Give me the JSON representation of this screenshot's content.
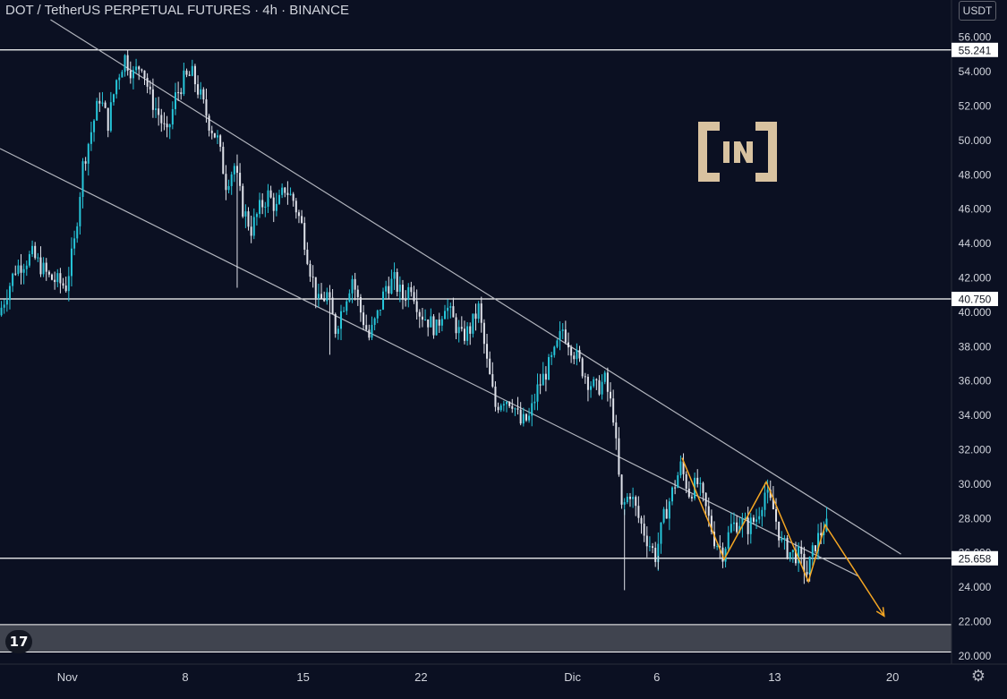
{
  "header": {
    "title": "DOT / TetherUS PERPETUAL FUTURES · 4h · BINANCE",
    "currency": "USDT",
    "tv_logo": "17"
  },
  "icons": {
    "settings": "gear-icon",
    "tradingview": "tradingview-logo-icon",
    "watermark": "beincrypto-logo-icon"
  },
  "colors": {
    "background": "#0b1022",
    "candle_up": "#26c6da",
    "candle_down": "#e0e3eb",
    "channel": "#b2b5be",
    "level": "#ffffff",
    "projection": "#f5a623",
    "zone": "#4a4d57",
    "axis_text": "#d1d4dc",
    "logo": "#d8c2a0"
  },
  "chart_data": {
    "type": "candlestick",
    "title": "DOT / TetherUS PERPETUAL FUTURES · 4h · BINANCE",
    "currency": "USDT",
    "ylim": [
      19.5,
      57
    ],
    "y_ticks": [
      "56.000",
      "54.000",
      "52.000",
      "50.000",
      "48.000",
      "46.000",
      "44.000",
      "42.000",
      "40.000",
      "38.000",
      "36.000",
      "34.000",
      "32.000",
      "30.000",
      "28.000",
      "26.000",
      "24.000",
      "22.000",
      "20.000"
    ],
    "x_range": [
      "2021-10-28T00:00",
      "2021-12-23T12:00"
    ],
    "x_ticks": [
      {
        "label": "Nov",
        "date": "2021-11-01"
      },
      {
        "label": "8",
        "date": "2021-11-08"
      },
      {
        "label": "15",
        "date": "2021-11-15"
      },
      {
        "label": "22",
        "date": "2021-11-22"
      },
      {
        "label": "Dic",
        "date": "2021-12-01"
      },
      {
        "label": "6",
        "date": "2021-12-06"
      },
      {
        "label": "13",
        "date": "2021-12-13"
      },
      {
        "label": "20",
        "date": "2021-12-20"
      }
    ],
    "price_levels": [
      {
        "value": 55.241,
        "label": "55.241"
      },
      {
        "value": 40.75,
        "label": "40.750"
      },
      {
        "value": 25.658,
        "label": "25.658"
      }
    ],
    "support_zone": [
      20.2,
      21.8
    ],
    "channel_lines": [
      {
        "from": [
          "2021-10-31T00:00",
          57.0
        ],
        "to": [
          "2021-12-20T12:00",
          25.9
        ]
      },
      {
        "from": [
          "2021-10-28T00:00",
          49.5
        ],
        "to": [
          "2021-12-18T00:00",
          24.6
        ]
      }
    ],
    "projection_path": [
      [
        "2021-12-07T12:00",
        31.5
      ],
      [
        "2021-12-10T00:00",
        25.6
      ],
      [
        "2021-12-12T12:00",
        30.1
      ],
      [
        "2021-12-15T00:00",
        24.3
      ],
      [
        "2021-12-16T00:00",
        27.6
      ],
      [
        "2021-12-19T12:00",
        22.3
      ]
    ],
    "price_path": [
      [
        "2021-10-28T00:00",
        39.8
      ],
      [
        "2021-10-29T00:00",
        42.5
      ],
      [
        "2021-10-30T00:00",
        43.3
      ],
      [
        "2021-10-31T00:00",
        42.0
      ],
      [
        "2021-11-01T00:00",
        41.5
      ],
      [
        "2021-11-01T12:00",
        44.0
      ],
      [
        "2021-11-02T00:00",
        48.5
      ],
      [
        "2021-11-02T12:00",
        50.5
      ],
      [
        "2021-11-03T00:00",
        52.5
      ],
      [
        "2021-11-03T12:00",
        51.0
      ],
      [
        "2021-11-04T00:00",
        53.5
      ],
      [
        "2021-11-04T12:00",
        54.8
      ],
      [
        "2021-11-05T00:00",
        53.8
      ],
      [
        "2021-11-05T12:00",
        54.5
      ],
      [
        "2021-11-06T00:00",
        52.5
      ],
      [
        "2021-11-06T12:00",
        51.5
      ],
      [
        "2021-11-07T00:00",
        50.2
      ],
      [
        "2021-11-07T12:00",
        52.5
      ],
      [
        "2021-11-08T00:00",
        53.5
      ],
      [
        "2021-11-08T12:00",
        53.8
      ],
      [
        "2021-11-09T00:00",
        52.5
      ],
      [
        "2021-11-09T12:00",
        51.0
      ],
      [
        "2021-11-10T00:00",
        50.0
      ],
      [
        "2021-11-10T12:00",
        47.5
      ],
      [
        "2021-11-11T00:00",
        48.5
      ],
      [
        "2021-11-11T12:00",
        46.0
      ],
      [
        "2021-11-12T00:00",
        44.8
      ],
      [
        "2021-11-12T12:00",
        46.0
      ],
      [
        "2021-11-13T00:00",
        46.8
      ],
      [
        "2021-11-13T12:00",
        46.0
      ],
      [
        "2021-11-14T00:00",
        47.2
      ],
      [
        "2021-11-14T12:00",
        46.5
      ],
      [
        "2021-11-15T00:00",
        45.0
      ],
      [
        "2021-11-15T12:00",
        42.5
      ],
      [
        "2021-11-16T00:00",
        40.5
      ],
      [
        "2021-11-16T12:00",
        41.0
      ],
      [
        "2021-11-17T00:00",
        39.0
      ],
      [
        "2021-11-17T12:00",
        40.5
      ],
      [
        "2021-11-18T00:00",
        42.0
      ],
      [
        "2021-11-18T12:00",
        40.0
      ],
      [
        "2021-11-19T00:00",
        38.5
      ],
      [
        "2021-11-19T12:00",
        39.8
      ],
      [
        "2021-11-20T00:00",
        41.5
      ],
      [
        "2021-11-20T12:00",
        41.8
      ],
      [
        "2021-11-21T00:00",
        40.8
      ],
      [
        "2021-11-21T12:00",
        41.6
      ],
      [
        "2021-11-22T00:00",
        40.0
      ],
      [
        "2021-11-22T12:00",
        39.5
      ],
      [
        "2021-11-23T00:00",
        39.0
      ],
      [
        "2021-11-23T12:00",
        40.5
      ],
      [
        "2021-11-24T00:00",
        39.5
      ],
      [
        "2021-11-24T12:00",
        38.5
      ],
      [
        "2021-11-25T00:00",
        39.0
      ],
      [
        "2021-11-25T12:00",
        40.2
      ],
      [
        "2021-11-26T00:00",
        37.0
      ],
      [
        "2021-11-26T12:00",
        34.5
      ],
      [
        "2021-11-27T00:00",
        35.0
      ],
      [
        "2021-11-27T12:00",
        34.8
      ],
      [
        "2021-11-28T00:00",
        33.5
      ],
      [
        "2021-11-28T12:00",
        33.8
      ],
      [
        "2021-11-29T00:00",
        35.5
      ],
      [
        "2021-11-29T12:00",
        36.5
      ],
      [
        "2021-11-30T00:00",
        37.5
      ],
      [
        "2021-11-30T12:00",
        39.0
      ],
      [
        "2021-12-01T00:00",
        38.0
      ],
      [
        "2021-12-01T12:00",
        37.0
      ],
      [
        "2021-12-02T00:00",
        36.0
      ],
      [
        "2021-12-02T12:00",
        35.5
      ],
      [
        "2021-12-03T00:00",
        36.0
      ],
      [
        "2021-12-03T12:00",
        34.0
      ],
      [
        "2021-12-04T00:00",
        28.5
      ],
      [
        "2021-12-04T12:00",
        29.5
      ],
      [
        "2021-12-05T00:00",
        28.0
      ],
      [
        "2021-12-05T12:00",
        26.8
      ],
      [
        "2021-12-06T00:00",
        25.8
      ],
      [
        "2021-12-06T12:00",
        28.0
      ],
      [
        "2021-12-07T00:00",
        29.5
      ],
      [
        "2021-12-07T12:00",
        31.0
      ],
      [
        "2021-12-08T00:00",
        29.5
      ],
      [
        "2021-12-08T12:00",
        30.0
      ],
      [
        "2021-12-09T00:00",
        28.5
      ],
      [
        "2021-12-09T12:00",
        26.8
      ],
      [
        "2021-12-10T00:00",
        26.0
      ],
      [
        "2021-12-10T12:00",
        27.5
      ],
      [
        "2021-12-11T00:00",
        27.8
      ],
      [
        "2021-12-11T12:00",
        27.5
      ],
      [
        "2021-12-12T00:00",
        28.0
      ],
      [
        "2021-12-12T12:00",
        29.5
      ],
      [
        "2021-12-13T00:00",
        28.5
      ],
      [
        "2021-12-13T12:00",
        26.5
      ],
      [
        "2021-12-14T00:00",
        26.0
      ],
      [
        "2021-12-14T12:00",
        25.8
      ],
      [
        "2021-12-15T00:00",
        24.8
      ],
      [
        "2021-12-15T12:00",
        26.5
      ],
      [
        "2021-12-16T00:00",
        27.5
      ]
    ],
    "wick_spikes": [
      [
        "2021-11-11T00:00",
        41.4
      ],
      [
        "2021-11-16T12:00",
        37.5
      ],
      [
        "2021-12-04T00:00",
        23.8
      ],
      [
        "2021-12-06T00:00",
        25.0
      ],
      [
        "2021-12-15T00:00",
        24.3
      ]
    ]
  }
}
